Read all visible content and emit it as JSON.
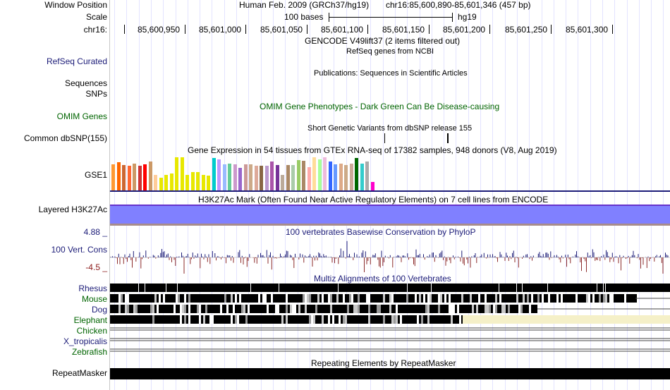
{
  "header": {
    "window_position_label": "Window Position",
    "scale_label": "Scale",
    "chrom_label": "chr16:",
    "assembly": "Human Feb. 2009 (GRCh37/hg19)",
    "position": "chr16:85,600,890-85,601,346 (457 bp)",
    "scale_text": "100 bases",
    "scale_db": "hg19",
    "ticks": [
      "85,600,950",
      "85,601,000",
      "85,601,050",
      "85,601,100",
      "85,601,150",
      "85,601,200",
      "85,601,250",
      "85,601,300"
    ]
  },
  "tracks": {
    "gencode_title": "GENCODE V49lift37 (2 items filtered out)",
    "refseq_subtitle": "RefSeq genes from NCBI",
    "refseq_label": "RefSeq Curated",
    "publications_title": "Publications: Sequences in Scientific Articles",
    "sequences_label": "Sequences",
    "snps_label": "SNPs",
    "omim_label": "OMIM Genes",
    "omim_title": "OMIM Gene Phenotypes - Dark Green Can Be Disease-causing",
    "dbsnp_title": "Short Genetic Variants from dbSNP release 155",
    "dbsnp_label": "Common dbSNP(155)",
    "gtex_title": "Gene Expression in 54 tissues from GTEx RNA-seq of 17382 samples, 948 donors (V8, Aug 2019)",
    "gtex_label": "GSE1",
    "h3k27ac_title": "H3K27Ac Mark (Often Found Near Active Regulatory Elements) on 7 cell lines from ENCODE",
    "h3k27ac_label": "Layered H3K27Ac",
    "phylop_max": "4.88 _",
    "phylop_min": "-4.5 _",
    "phylop_title": "100 vertebrates Basewise Conservation by PhyloP",
    "phylop_label": "100 Vert. Cons",
    "multiz_title": "Multiz Alignments of 100 Vertebrates",
    "species": [
      "Rhesus",
      "Mouse",
      "Dog",
      "Elephant",
      "Chicken",
      "X_tropicalis",
      "Zebrafish"
    ],
    "repeat_title": "Repeating Elements by RepeatMasker",
    "repeat_label": "RepeatMasker"
  },
  "gtex_bars": {
    "colors": [
      "#ff9933",
      "#ff6600",
      "#cc6633",
      "#ff6633",
      "#cc9966",
      "#cc3333",
      "#ff0000",
      "#cc9966",
      "#ffcc99",
      "#e8e800",
      "#e8e800",
      "#e8e800",
      "#e8e800",
      "#e8e800",
      "#e8e800",
      "#e8e800",
      "#e8e800",
      "#e8e800",
      "#e8e800",
      "#00cccc",
      "#bb99ff",
      "#99bbff",
      "#66cc99",
      "#cc99cc",
      "#9966cc",
      "#cc9999",
      "#ccaa88",
      "#ddaa99",
      "#886644",
      "#bb99cc",
      "#aa55aa",
      "#773399",
      "#bbaa99",
      "#aa8866",
      "#aaccaa",
      "#99cc66",
      "#aa8866",
      "#ffaaaa",
      "#ffdd99",
      "#aaff99",
      "#eebbdd",
      "#3366ff",
      "#6699ff",
      "#ddaa88",
      "#ccaa88",
      "#ccaa99",
      "#006600",
      "#33cccc",
      "#aaaaaa",
      "#ff00cc"
    ],
    "heights": [
      0.78,
      0.83,
      0.74,
      0.72,
      0.8,
      0.72,
      0.78,
      0.86,
      0.46,
      0.37,
      0.46,
      0.5,
      0.97,
      0.97,
      0.46,
      0.54,
      0.54,
      0.46,
      0.43,
      0.95,
      0.92,
      0.78,
      0.8,
      0.78,
      0.66,
      0.78,
      0.78,
      0.72,
      0.72,
      0.72,
      0.86,
      0.74,
      0.46,
      0.75,
      0.75,
      0.89,
      0.88,
      0.68,
      0.98,
      0.92,
      0.97,
      0.86,
      0.78,
      0.8,
      0.74,
      0.8,
      0.96,
      0.8,
      0.86,
      0.25
    ]
  }
}
